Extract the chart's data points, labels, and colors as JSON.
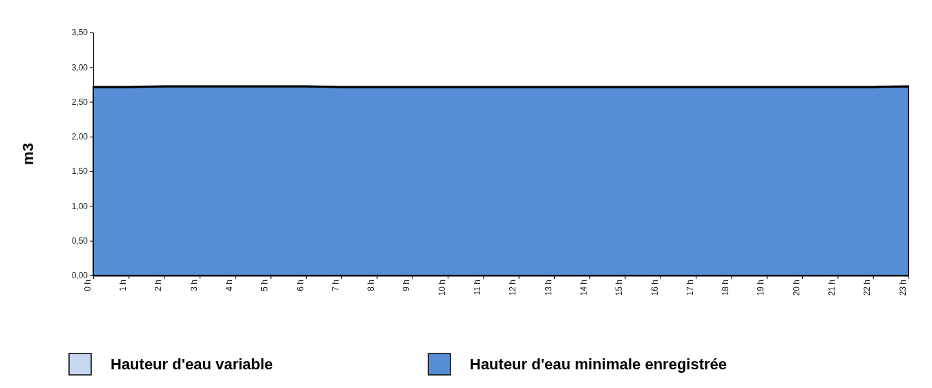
{
  "chart_data": {
    "type": "area",
    "stacked": true,
    "ylabel": "m3",
    "categories": [
      "0 h",
      "1 h",
      "2 h",
      "3 h",
      "4 h",
      "5 h",
      "6 h",
      "7 h",
      "8 h",
      "9 h",
      "10 h",
      "11 h",
      "12 h",
      "13 h",
      "14 h",
      "15 h",
      "16 h",
      "17 h",
      "18 h",
      "19 h",
      "20 h",
      "21 h",
      "22 h",
      "23 h"
    ],
    "series": [
      {
        "name": "Hauteur d'eau minimale enregistrée",
        "color": "#558ed5",
        "values": [
          2.71,
          2.71,
          2.72,
          2.72,
          2.72,
          2.72,
          2.72,
          2.71,
          2.71,
          2.71,
          2.71,
          2.71,
          2.71,
          2.71,
          2.71,
          2.71,
          2.71,
          2.71,
          2.71,
          2.71,
          2.71,
          2.71,
          2.71,
          2.72
        ]
      },
      {
        "name": "Hauteur d'eau variable",
        "color": "#c6d9f1",
        "values": [
          0.01,
          0.01,
          0.01,
          0.01,
          0.01,
          0.01,
          0.01,
          0.01,
          0.01,
          0.01,
          0.01,
          0.01,
          0.01,
          0.01,
          0.01,
          0.01,
          0.01,
          0.01,
          0.01,
          0.01,
          0.01,
          0.01,
          0.01,
          0.01
        ]
      }
    ],
    "ylim": [
      0,
      3.5
    ],
    "yticks": [
      {
        "value": 0,
        "label": "0,00"
      },
      {
        "value": 0.5,
        "label": "0,50"
      },
      {
        "value": 1,
        "label": "1,00"
      },
      {
        "value": 1.5,
        "label": "1,50"
      },
      {
        "value": 2,
        "label": "2,00"
      },
      {
        "value": 2.5,
        "label": "2,50"
      },
      {
        "value": 3,
        "label": "3,00"
      },
      {
        "value": 3.5,
        "label": "3,50"
      }
    ],
    "grid": false,
    "legend": "bottom"
  }
}
